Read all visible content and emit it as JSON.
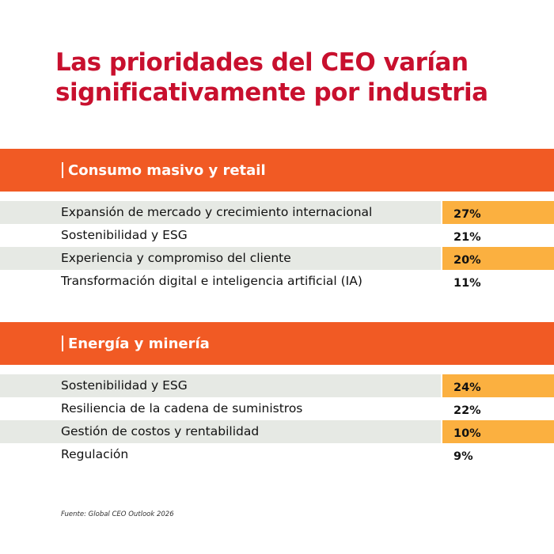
{
  "title": {
    "line1": "Las prioridades del CEO varían",
    "line2": "significativamente por industria"
  },
  "colors": {
    "title": "#c8102e",
    "header_bg": "#f15a24",
    "highlight": "#fbb040",
    "row_shade": "#e6e9e4"
  },
  "chart_data": {
    "type": "table",
    "title": "Las prioridades del CEO varían significativamente por industria",
    "sections": [
      {
        "name": "Consumo masivo y retail",
        "rows": [
          {
            "label": "Expansión de mercado y crecimiento internacional",
            "value": "27%",
            "highlighted": true
          },
          {
            "label": "Sostenibilidad y ESG",
            "value": "21%",
            "highlighted": false
          },
          {
            "label": "Experiencia y compromiso del cliente",
            "value": "20%",
            "highlighted": true
          },
          {
            "label": "Transformación digital e inteligencia artificial (IA)",
            "value": "11%",
            "highlighted": false
          }
        ]
      },
      {
        "name": "Energía y minería",
        "rows": [
          {
            "label": "Sostenibilidad y ESG",
            "value": "24%",
            "highlighted": true
          },
          {
            "label": "Resiliencia de la cadena de suministros",
            "value": "22%",
            "highlighted": false
          },
          {
            "label": "Gestión de costos y rentabilidad",
            "value": "10%",
            "highlighted": true
          },
          {
            "label": "Regulación",
            "value": "9%",
            "highlighted": false
          }
        ]
      }
    ]
  },
  "source": "Fuente: Global CEO Outlook 2026"
}
